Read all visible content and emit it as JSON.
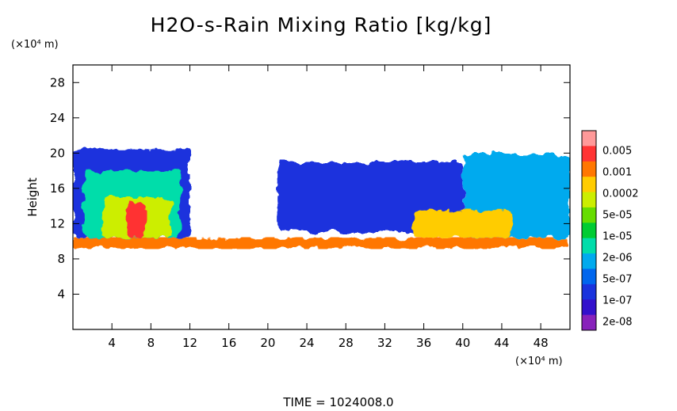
{
  "chart_data": {
    "type": "heatmap",
    "title": "H2O-s-Rain Mixing Ratio [kg/kg]",
    "xlabel": "",
    "ylabel": "Height",
    "x_unit": "(×10⁴ m)",
    "y_unit": "(×10⁴ m)",
    "footer": "TIME = 1024008.0",
    "xlim": [
      0,
      51
    ],
    "ylim": [
      0,
      30
    ],
    "x_ticks": [
      4,
      8,
      12,
      16,
      20,
      24,
      28,
      32,
      36,
      40,
      44,
      48
    ],
    "y_ticks": [
      4,
      8,
      12,
      16,
      20,
      24,
      28
    ],
    "colorbar": {
      "labels": [
        "0.005",
        "0.001",
        "0.0002",
        "5e-05",
        "1e-05",
        "2e-06",
        "5e-07",
        "1e-07",
        "2e-08"
      ],
      "colors": [
        "#ff9999",
        "#ff3333",
        "#ff7700",
        "#ffcc00",
        "#ccee00",
        "#66dd00",
        "#00cc33",
        "#00ddaa",
        "#00aaee",
        "#0066ee",
        "#1a33dd",
        "#3311cc",
        "#8822bb"
      ]
    },
    "regions": [
      {
        "name": "melting-layer",
        "x": [
          0,
          51
        ],
        "y": [
          9.2,
          10.4
        ],
        "level": 2
      },
      {
        "name": "left-cloud-envelope",
        "x": [
          0,
          12
        ],
        "y": [
          10.4,
          20.5
        ],
        "level": 10
      },
      {
        "name": "left-cloud-body",
        "x": [
          1,
          11
        ],
        "y": [
          10.4,
          18
        ],
        "level": 7
      },
      {
        "name": "left-cloud-core",
        "x": [
          3,
          10
        ],
        "y": [
          10.4,
          15
        ],
        "level": 4
      },
      {
        "name": "left-cloud-peak",
        "x": [
          5.5,
          7.5
        ],
        "y": [
          10.4,
          14.5
        ],
        "level": 1
      },
      {
        "name": "middle-anvil",
        "x": [
          21,
          40
        ],
        "y": [
          11,
          19
        ],
        "level": 10
      },
      {
        "name": "right-anvil",
        "x": [
          40,
          51
        ],
        "y": [
          10.4,
          19.8
        ],
        "level": 8
      },
      {
        "name": "right-cloud-core",
        "x": [
          35,
          45
        ],
        "y": [
          10.4,
          13.5
        ],
        "level": 3
      }
    ]
  }
}
